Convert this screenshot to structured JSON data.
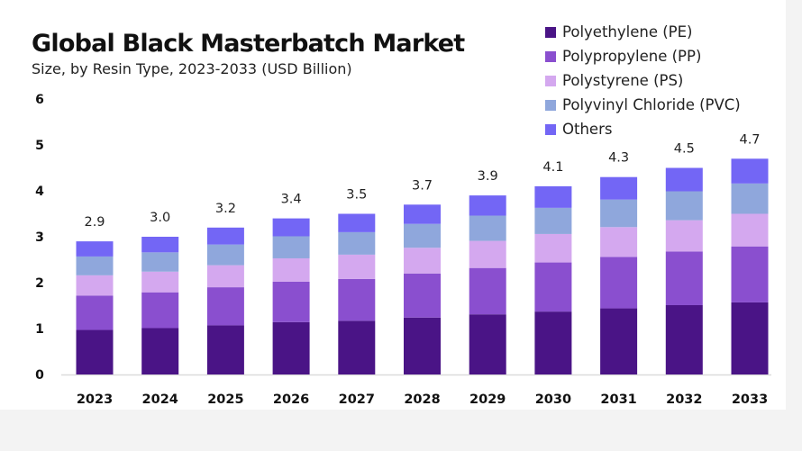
{
  "chart_data": {
    "type": "bar",
    "stacked": true,
    "title": "Global Black Masterbatch Market",
    "subtitle": "Size, by Resin Type, 2023-2033 (USD Billion)",
    "xlabel": "",
    "ylabel": "",
    "ylim": [
      0,
      6
    ],
    "yticks": [
      "0",
      "1",
      "2",
      "3",
      "4",
      "5",
      "6"
    ],
    "grid": false,
    "legend_position": "top-right",
    "categories": [
      "2023",
      "2024",
      "2025",
      "2026",
      "2027",
      "2028",
      "2029",
      "2030",
      "2031",
      "2032",
      "2033"
    ],
    "totals": [
      "2.9",
      "3.0",
      "3.2",
      "3.4",
      "3.5",
      "3.7",
      "3.9",
      "4.1",
      "4.3",
      "4.5",
      "4.7"
    ],
    "series": [
      {
        "name": "Polyethylene (PE)",
        "color": "#4a1486",
        "values": [
          0.97,
          1.01,
          1.07,
          1.14,
          1.17,
          1.24,
          1.31,
          1.37,
          1.44,
          1.51,
          1.57
        ]
      },
      {
        "name": "Polypropylene (PP)",
        "color": "#8a4fcf",
        "values": [
          0.75,
          0.78,
          0.83,
          0.88,
          0.91,
          0.96,
          1.01,
          1.07,
          1.12,
          1.17,
          1.22
        ]
      },
      {
        "name": "Polystyrene (PS)",
        "color": "#d4a8ef",
        "values": [
          0.44,
          0.45,
          0.48,
          0.51,
          0.53,
          0.56,
          0.59,
          0.62,
          0.65,
          0.68,
          0.71
        ]
      },
      {
        "name": "Polyvinyl Chloride (PVC)",
        "color": "#8fa7dc",
        "values": [
          0.41,
          0.42,
          0.45,
          0.48,
          0.49,
          0.52,
          0.55,
          0.57,
          0.6,
          0.63,
          0.66
        ]
      },
      {
        "name": "Others",
        "color": "#7366f5",
        "values": [
          0.33,
          0.34,
          0.37,
          0.39,
          0.4,
          0.42,
          0.44,
          0.47,
          0.49,
          0.51,
          0.54
        ]
      }
    ]
  }
}
